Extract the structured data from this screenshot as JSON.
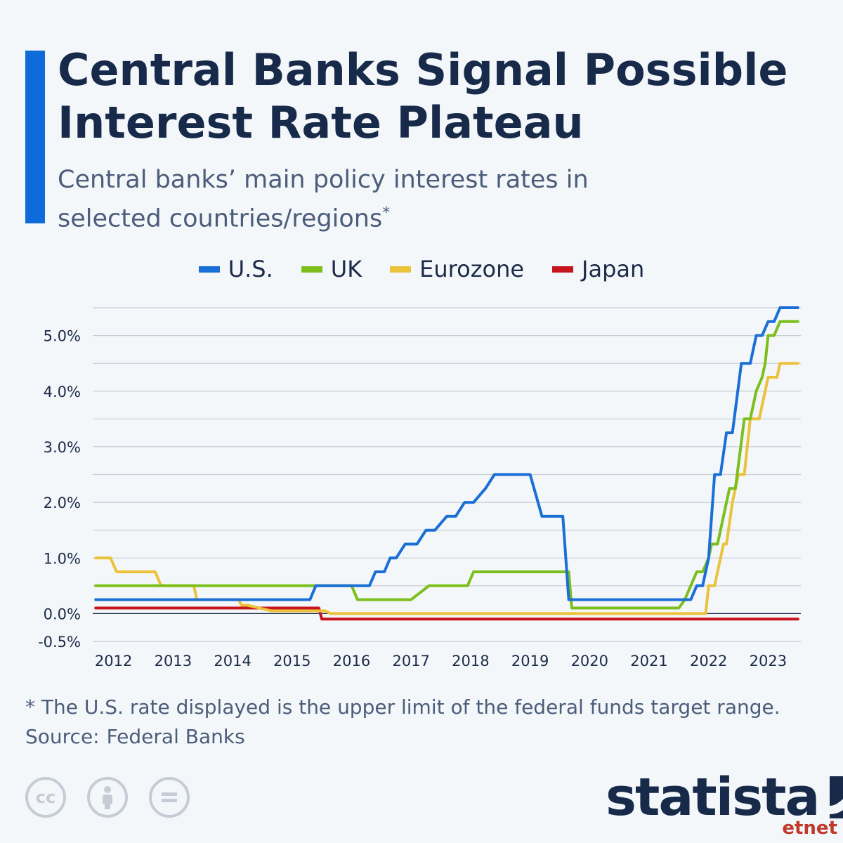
{
  "header": {
    "title": "Central Banks Signal Possible Interest Rate Plateau",
    "subtitle": "Central banks’ main policy interest rates in selected countries/regions",
    "subtitle_mark": "*"
  },
  "colors": {
    "accent": "#0d6cd9",
    "us": "#1a6fd6",
    "uk": "#7cbf1c",
    "eurozone": "#ebc23a",
    "japan": "#c8141e"
  },
  "legend": [
    {
      "label": "U.S.",
      "color": "#1a6fd6"
    },
    {
      "label": "UK",
      "color": "#7cbf1c"
    },
    {
      "label": "Eurozone",
      "color": "#ebc23a"
    },
    {
      "label": "Japan",
      "color": "#c8141e"
    }
  ],
  "chart_data": {
    "type": "line",
    "step": true,
    "ylim": [
      -0.5,
      5.5
    ],
    "xlim": [
      2011.7,
      2023.6
    ],
    "grid": true,
    "legend_position": "top",
    "y_ticks": [
      {
        "value": 5.0,
        "label": "5.0%"
      },
      {
        "value": 4.0,
        "label": "4.0%"
      },
      {
        "value": 3.0,
        "label": "3.0%"
      },
      {
        "value": 2.0,
        "label": "2.0%"
      },
      {
        "value": 1.0,
        "label": "1.0%"
      },
      {
        "value": 0.0,
        "label": "0.0%"
      },
      {
        "value": -0.5,
        "label": "-0.5%"
      }
    ],
    "x_ticks": [
      {
        "value": 2012,
        "label": "2012"
      },
      {
        "value": 2013,
        "label": "2013"
      },
      {
        "value": 2014,
        "label": "2014"
      },
      {
        "value": 2015,
        "label": "2015"
      },
      {
        "value": 2016,
        "label": "2016"
      },
      {
        "value": 2017,
        "label": "2017"
      },
      {
        "value": 2018,
        "label": "2018"
      },
      {
        "value": 2019,
        "label": "2019"
      },
      {
        "value": 2020,
        "label": "2020"
      },
      {
        "value": 2021,
        "label": "2021"
      },
      {
        "value": 2022,
        "label": "2022"
      },
      {
        "value": 2023,
        "label": "2023"
      }
    ],
    "series": [
      {
        "name": "U.S.",
        "color": "#1a6fd6",
        "x": [
          2011.75,
          2015.35,
          2015.45,
          2016.35,
          2016.45,
          2016.6,
          2016.7,
          2016.8,
          2016.95,
          2017.15,
          2017.3,
          2017.45,
          2017.65,
          2017.8,
          2017.95,
          2018.1,
          2018.3,
          2018.45,
          2019.05,
          2019.25,
          2019.6,
          2019.7,
          2021.75,
          2021.85,
          2021.95,
          2022.05,
          2022.15,
          2022.25,
          2022.35,
          2022.45,
          2022.6,
          2022.75,
          2022.85,
          2022.95,
          2023.05,
          2023.15,
          2023.25,
          2023.55
        ],
        "y": [
          0.25,
          0.25,
          0.5,
          0.5,
          0.75,
          0.75,
          1.0,
          1.0,
          1.25,
          1.25,
          1.5,
          1.5,
          1.75,
          1.75,
          2.0,
          2.0,
          2.25,
          2.5,
          2.5,
          1.75,
          1.75,
          0.25,
          0.25,
          0.5,
          0.5,
          1.0,
          2.5,
          2.5,
          3.25,
          3.25,
          4.5,
          4.5,
          5.0,
          5.0,
          5.25,
          5.25,
          5.5,
          5.5
        ]
      },
      {
        "name": "UK",
        "color": "#7cbf1c",
        "x": [
          2011.75,
          2016.05,
          2016.15,
          2016.8,
          2017.05,
          2017.35,
          2017.85,
          2018.0,
          2018.1,
          2018.6,
          2019.7,
          2019.75,
          2021.55,
          2021.65,
          2021.85,
          2021.95,
          2022.05,
          2022.1,
          2022.2,
          2022.3,
          2022.4,
          2022.5,
          2022.65,
          2022.75,
          2022.85,
          2022.95,
          2023.0,
          2023.05,
          2023.15,
          2023.25,
          2023.55
        ],
        "y": [
          0.5,
          0.5,
          0.25,
          0.25,
          0.25,
          0.5,
          0.5,
          0.5,
          0.75,
          0.75,
          0.75,
          0.1,
          0.1,
          0.25,
          0.75,
          0.75,
          1.0,
          1.25,
          1.25,
          1.75,
          2.25,
          2.25,
          3.5,
          3.5,
          4.0,
          4.25,
          4.5,
          5.0,
          5.0,
          5.25,
          5.25
        ]
      },
      {
        "name": "Eurozone",
        "color": "#ebc23a",
        "x": [
          2011.75,
          2011.95,
          2012.0,
          2012.1,
          2012.75,
          2012.85,
          2013.3,
          2013.4,
          2013.45,
          2013.85,
          2013.9,
          2014.15,
          2014.2,
          2014.3,
          2014.7,
          2015.0,
          2015.6,
          2015.7,
          2016.2,
          2022.0,
          2022.05,
          2022.15,
          2022.2,
          2022.3,
          2022.35,
          2022.45,
          2022.55,
          2022.6,
          2022.65,
          2022.7,
          2022.75,
          2022.85,
          2022.9,
          2022.95,
          2023.05,
          2023.2,
          2023.25,
          2023.55
        ],
        "y": [
          1.0,
          1.0,
          1.0,
          0.75,
          0.75,
          0.5,
          0.5,
          0.5,
          0.25,
          0.25,
          0.25,
          0.25,
          0.15,
          0.15,
          0.05,
          0.05,
          0.05,
          0.0,
          0.0,
          0.0,
          0.5,
          0.5,
          0.75,
          1.25,
          1.25,
          2.0,
          2.5,
          2.5,
          2.5,
          3.0,
          3.5,
          3.5,
          3.5,
          3.75,
          4.25,
          4.25,
          4.5,
          4.5
        ]
      },
      {
        "name": "Japan",
        "color": "#c8141e",
        "x": [
          2011.75,
          2015.5,
          2015.55,
          2023.55
        ],
        "y": [
          0.1,
          0.1,
          -0.1,
          -0.1
        ]
      }
    ]
  },
  "footnote": "* The U.S. rate displayed is the upper limit of the federal funds target range.",
  "source": {
    "label": "Source:",
    "value": "Federal Banks"
  },
  "brand": {
    "name": "statista"
  },
  "watermark": "etnet"
}
